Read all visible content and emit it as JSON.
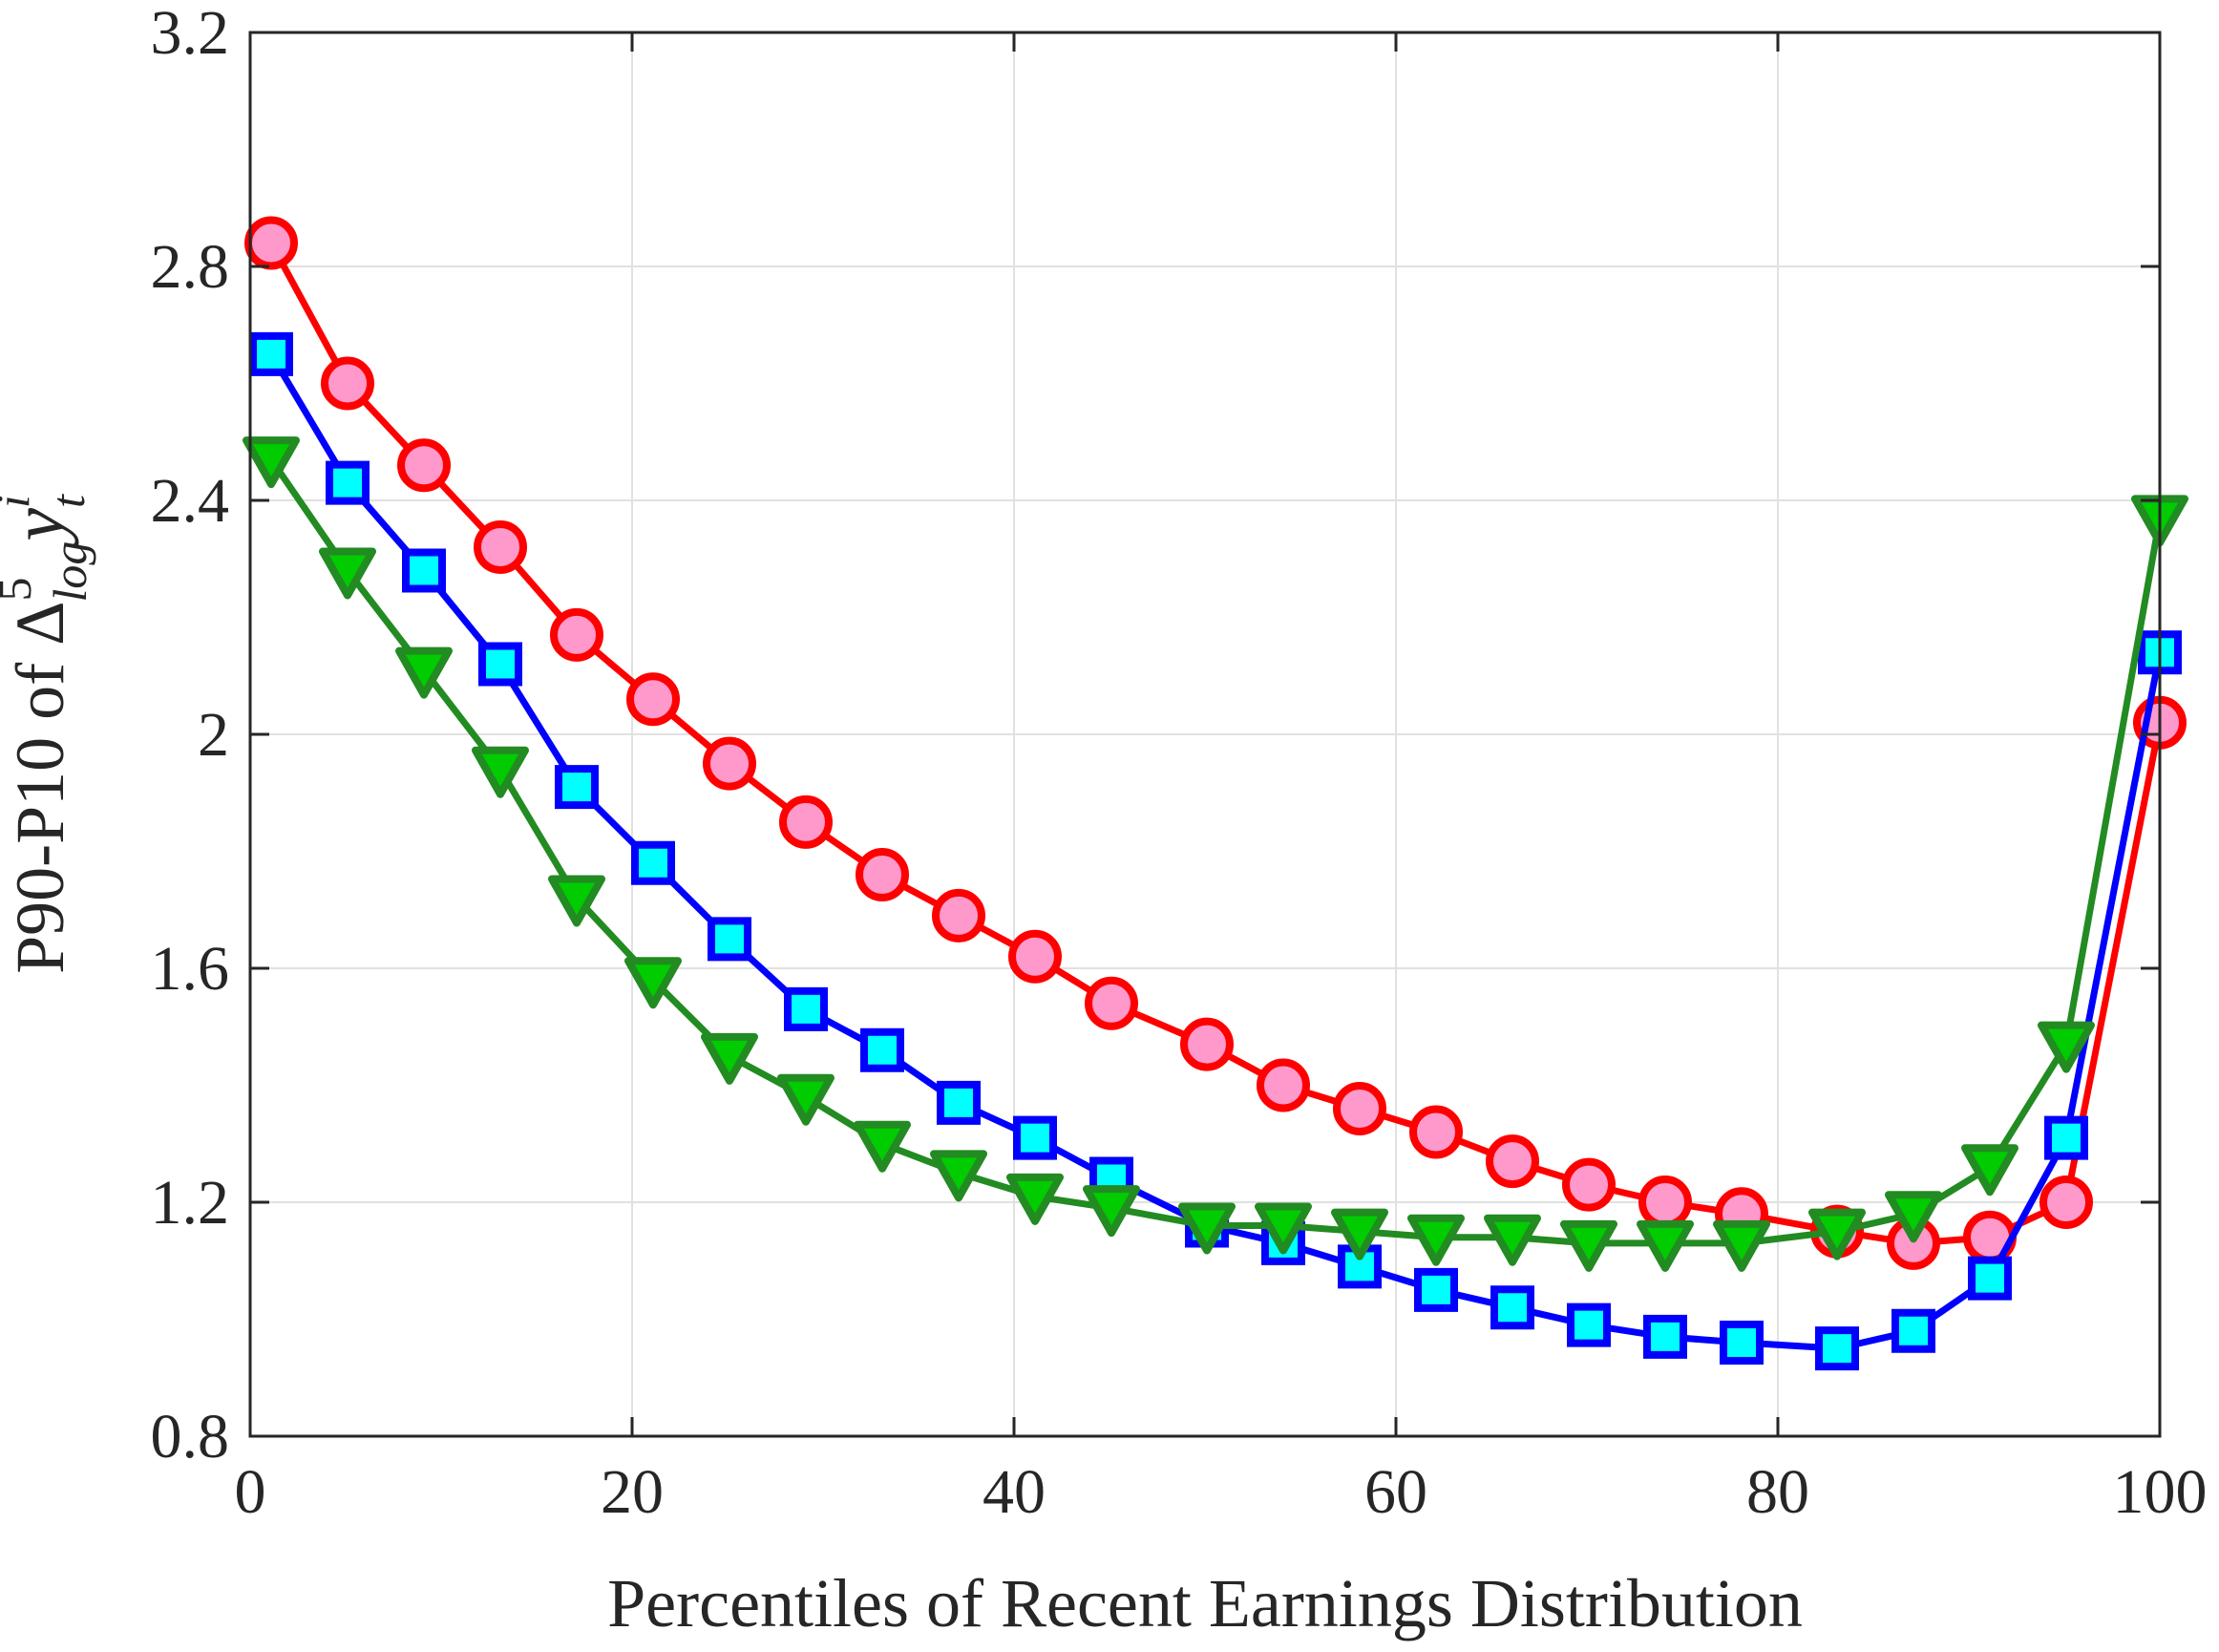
{
  "chart_data": {
    "type": "line",
    "title": "",
    "xlabel": "Percentiles of Recent Earnings Distribution",
    "ylabel": {
      "prefix": "P90-P10 of Δ",
      "superscript": "5",
      "subscript": "log",
      "variable": "y",
      "variable_subscript": "t",
      "variable_superscript": "i"
    },
    "xlim": [
      0,
      100
    ],
    "ylim": [
      0.8,
      3.2
    ],
    "xticks": [
      "0",
      "20",
      "40",
      "60",
      "80",
      "100"
    ],
    "xtick_values": [
      0,
      20,
      40,
      60,
      80,
      100
    ],
    "yticks": [
      "0.8",
      "1.2",
      "1.6",
      "2",
      "2.4",
      "2.8",
      "3.2"
    ],
    "ytick_values": [
      0.8,
      1.2,
      1.6,
      2.0,
      2.4,
      2.8,
      3.2
    ],
    "grid": true,
    "legend": "none",
    "series": [
      {
        "name": "red-circles",
        "color": "#ff0000",
        "marker": "circle",
        "marker_fill": "#ff99cc",
        "x": [
          1.1,
          5.1,
          9.1,
          13.1,
          17.1,
          21.1,
          25.1,
          29.1,
          33.1,
          37.1,
          41.1,
          45.1,
          50.1,
          54.1,
          58.1,
          62.1,
          66.1,
          70.1,
          74.1,
          78.1,
          83.1,
          87.1,
          91.1,
          95.1,
          100
        ],
        "y": [
          2.84,
          2.6,
          2.46,
          2.32,
          2.17,
          2.06,
          1.95,
          1.85,
          1.76,
          1.69,
          1.62,
          1.54,
          1.47,
          1.4,
          1.36,
          1.32,
          1.27,
          1.23,
          1.2,
          1.18,
          1.15,
          1.13,
          1.14,
          1.2,
          2.02
        ]
      },
      {
        "name": "blue-squares",
        "color": "#0000ff",
        "marker": "square",
        "marker_fill": "#00ffff",
        "x": [
          1.1,
          5.1,
          9.1,
          13.1,
          17.1,
          21.1,
          25.1,
          29.1,
          33.1,
          37.1,
          41.1,
          45.1,
          50.1,
          54.1,
          58.1,
          62.1,
          66.1,
          70.1,
          74.1,
          78.1,
          83.1,
          87.1,
          91.1,
          95.1,
          100
        ],
        "y": [
          2.65,
          2.43,
          2.28,
          2.12,
          1.91,
          1.78,
          1.65,
          1.53,
          1.46,
          1.37,
          1.31,
          1.24,
          1.16,
          1.13,
          1.09,
          1.05,
          1.02,
          0.99,
          0.97,
          0.96,
          0.95,
          0.98,
          1.07,
          1.31,
          2.14
        ]
      },
      {
        "name": "green-triangles",
        "color": "#228b22",
        "marker": "triangle-down",
        "marker_fill": "#00cc00",
        "x": [
          1.1,
          5.1,
          9.1,
          13.1,
          17.1,
          21.1,
          25.1,
          29.1,
          33.1,
          37.1,
          41.1,
          45.1,
          50.1,
          54.1,
          58.1,
          62.1,
          66.1,
          70.1,
          74.1,
          78.1,
          83.1,
          87.1,
          91.1,
          95.1,
          100
        ],
        "y": [
          2.47,
          2.28,
          2.11,
          1.94,
          1.72,
          1.58,
          1.45,
          1.38,
          1.3,
          1.25,
          1.21,
          1.19,
          1.16,
          1.16,
          1.15,
          1.14,
          1.14,
          1.13,
          1.13,
          1.13,
          1.15,
          1.18,
          1.26,
          1.47,
          2.37
        ]
      }
    ]
  }
}
